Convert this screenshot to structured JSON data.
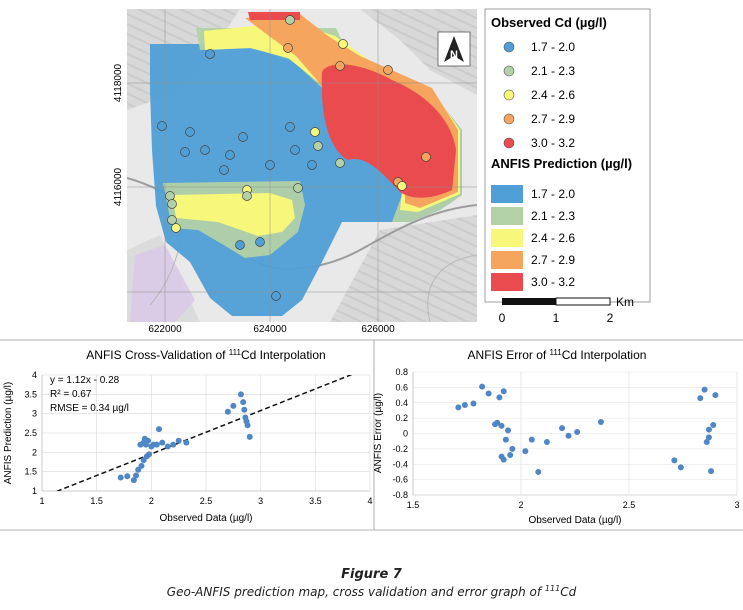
{
  "figure": {
    "title": "Figure 7",
    "caption": "Geo-ANFIS prediction map, cross validation and error graph of ",
    "caption_sup": "111",
    "caption_tail": "Cd"
  },
  "map": {
    "x_ticks": [
      "622000",
      "624000",
      "626000"
    ],
    "y_ticks": [
      "4118000",
      "4116000"
    ],
    "north_label": "N",
    "legend_observed_title": "Observed Cd (µg/l)",
    "legend_prediction_title": "ANFIS Prediction (µg/l)",
    "classes": [
      "1.7 - 2.0",
      "2.1 - 2.3",
      "2.4 - 2.6",
      "2.7 - 2.9",
      "3.0 - 3.2"
    ],
    "class_colors": [
      "#4f9fd6",
      "#b3d1a6",
      "#f7f77a",
      "#f5a55e",
      "#e94b4f"
    ],
    "scale_labels": [
      "0",
      "1",
      "2"
    ],
    "scale_unit": "Km"
  },
  "chart_data": [
    {
      "type": "scatter",
      "title": "ANFIS Cross-Validation of ",
      "title_sup": "111",
      "title_tail": "Cd Interpolation",
      "xlabel": "Observed Data (µg/l)",
      "ylabel": "ANFIS Prediction (µg/l)",
      "xlim": [
        1,
        4
      ],
      "ylim": [
        1,
        4
      ],
      "x_ticks": [
        1,
        1.5,
        2,
        2.5,
        3,
        3.5,
        4
      ],
      "y_ticks": [
        1,
        1.5,
        2,
        2.5,
        3,
        3.5,
        4
      ],
      "annotations": [
        "y = 1.12x - 0.28",
        "R² = 0.67",
        "RMSE = 0.34 µg/l"
      ],
      "trendline": {
        "slope": 1.12,
        "intercept": -0.28,
        "style": "dashed"
      },
      "x": [
        1.72,
        1.78,
        1.84,
        1.86,
        1.88,
        1.9,
        1.91,
        1.93,
        1.93,
        1.94,
        1.95,
        1.96,
        1.97,
        1.98,
        2.0,
        2.02,
        2.05,
        2.07,
        2.1,
        2.15,
        2.2,
        2.25,
        2.32,
        2.7,
        2.75,
        2.82,
        2.84,
        2.85,
        2.86,
        2.87,
        2.88,
        2.9
      ],
      "y": [
        1.35,
        1.38,
        1.28,
        1.4,
        1.55,
        2.2,
        1.65,
        2.25,
        1.8,
        2.35,
        2.2,
        1.9,
        2.3,
        1.95,
        2.15,
        2.2,
        2.2,
        2.6,
        2.25,
        2.15,
        2.2,
        2.3,
        2.25,
        3.05,
        3.2,
        3.5,
        3.3,
        3.1,
        2.9,
        2.8,
        2.7,
        2.4
      ]
    },
    {
      "type": "scatter",
      "title": "ANFIS Error of ",
      "title_sup": "111",
      "title_tail": "Cd Interpolation",
      "xlabel": "Observed Data (µg/l)",
      "ylabel": "ANFIS Error (µg/l)",
      "xlim": [
        1.5,
        3
      ],
      "ylim": [
        -0.8,
        0.8
      ],
      "x_ticks": [
        1.5,
        2,
        2.5,
        3
      ],
      "y_ticks": [
        -0.8,
        -0.6,
        -0.4,
        -0.2,
        0,
        0.2,
        0.4,
        0.6,
        0.8
      ],
      "x": [
        1.71,
        1.74,
        1.78,
        1.82,
        1.85,
        1.88,
        1.89,
        1.9,
        1.91,
        1.91,
        1.92,
        1.92,
        1.93,
        1.94,
        1.95,
        1.96,
        2.02,
        2.05,
        2.08,
        2.12,
        2.19,
        2.22,
        2.26,
        2.37,
        2.71,
        2.74,
        2.83,
        2.85,
        2.86,
        2.87,
        2.87,
        2.88,
        2.89,
        2.9
      ],
      "y": [
        0.34,
        0.37,
        0.39,
        0.61,
        0.52,
        0.12,
        0.14,
        0.47,
        0.1,
        -0.3,
        0.55,
        -0.34,
        -0.08,
        0.04,
        -0.28,
        -0.2,
        -0.23,
        -0.08,
        -0.5,
        -0.11,
        0.07,
        -0.03,
        0.02,
        0.15,
        -0.35,
        -0.44,
        0.46,
        0.57,
        -0.11,
        -0.05,
        0.05,
        -0.49,
        0.11,
        0.5
      ]
    }
  ]
}
